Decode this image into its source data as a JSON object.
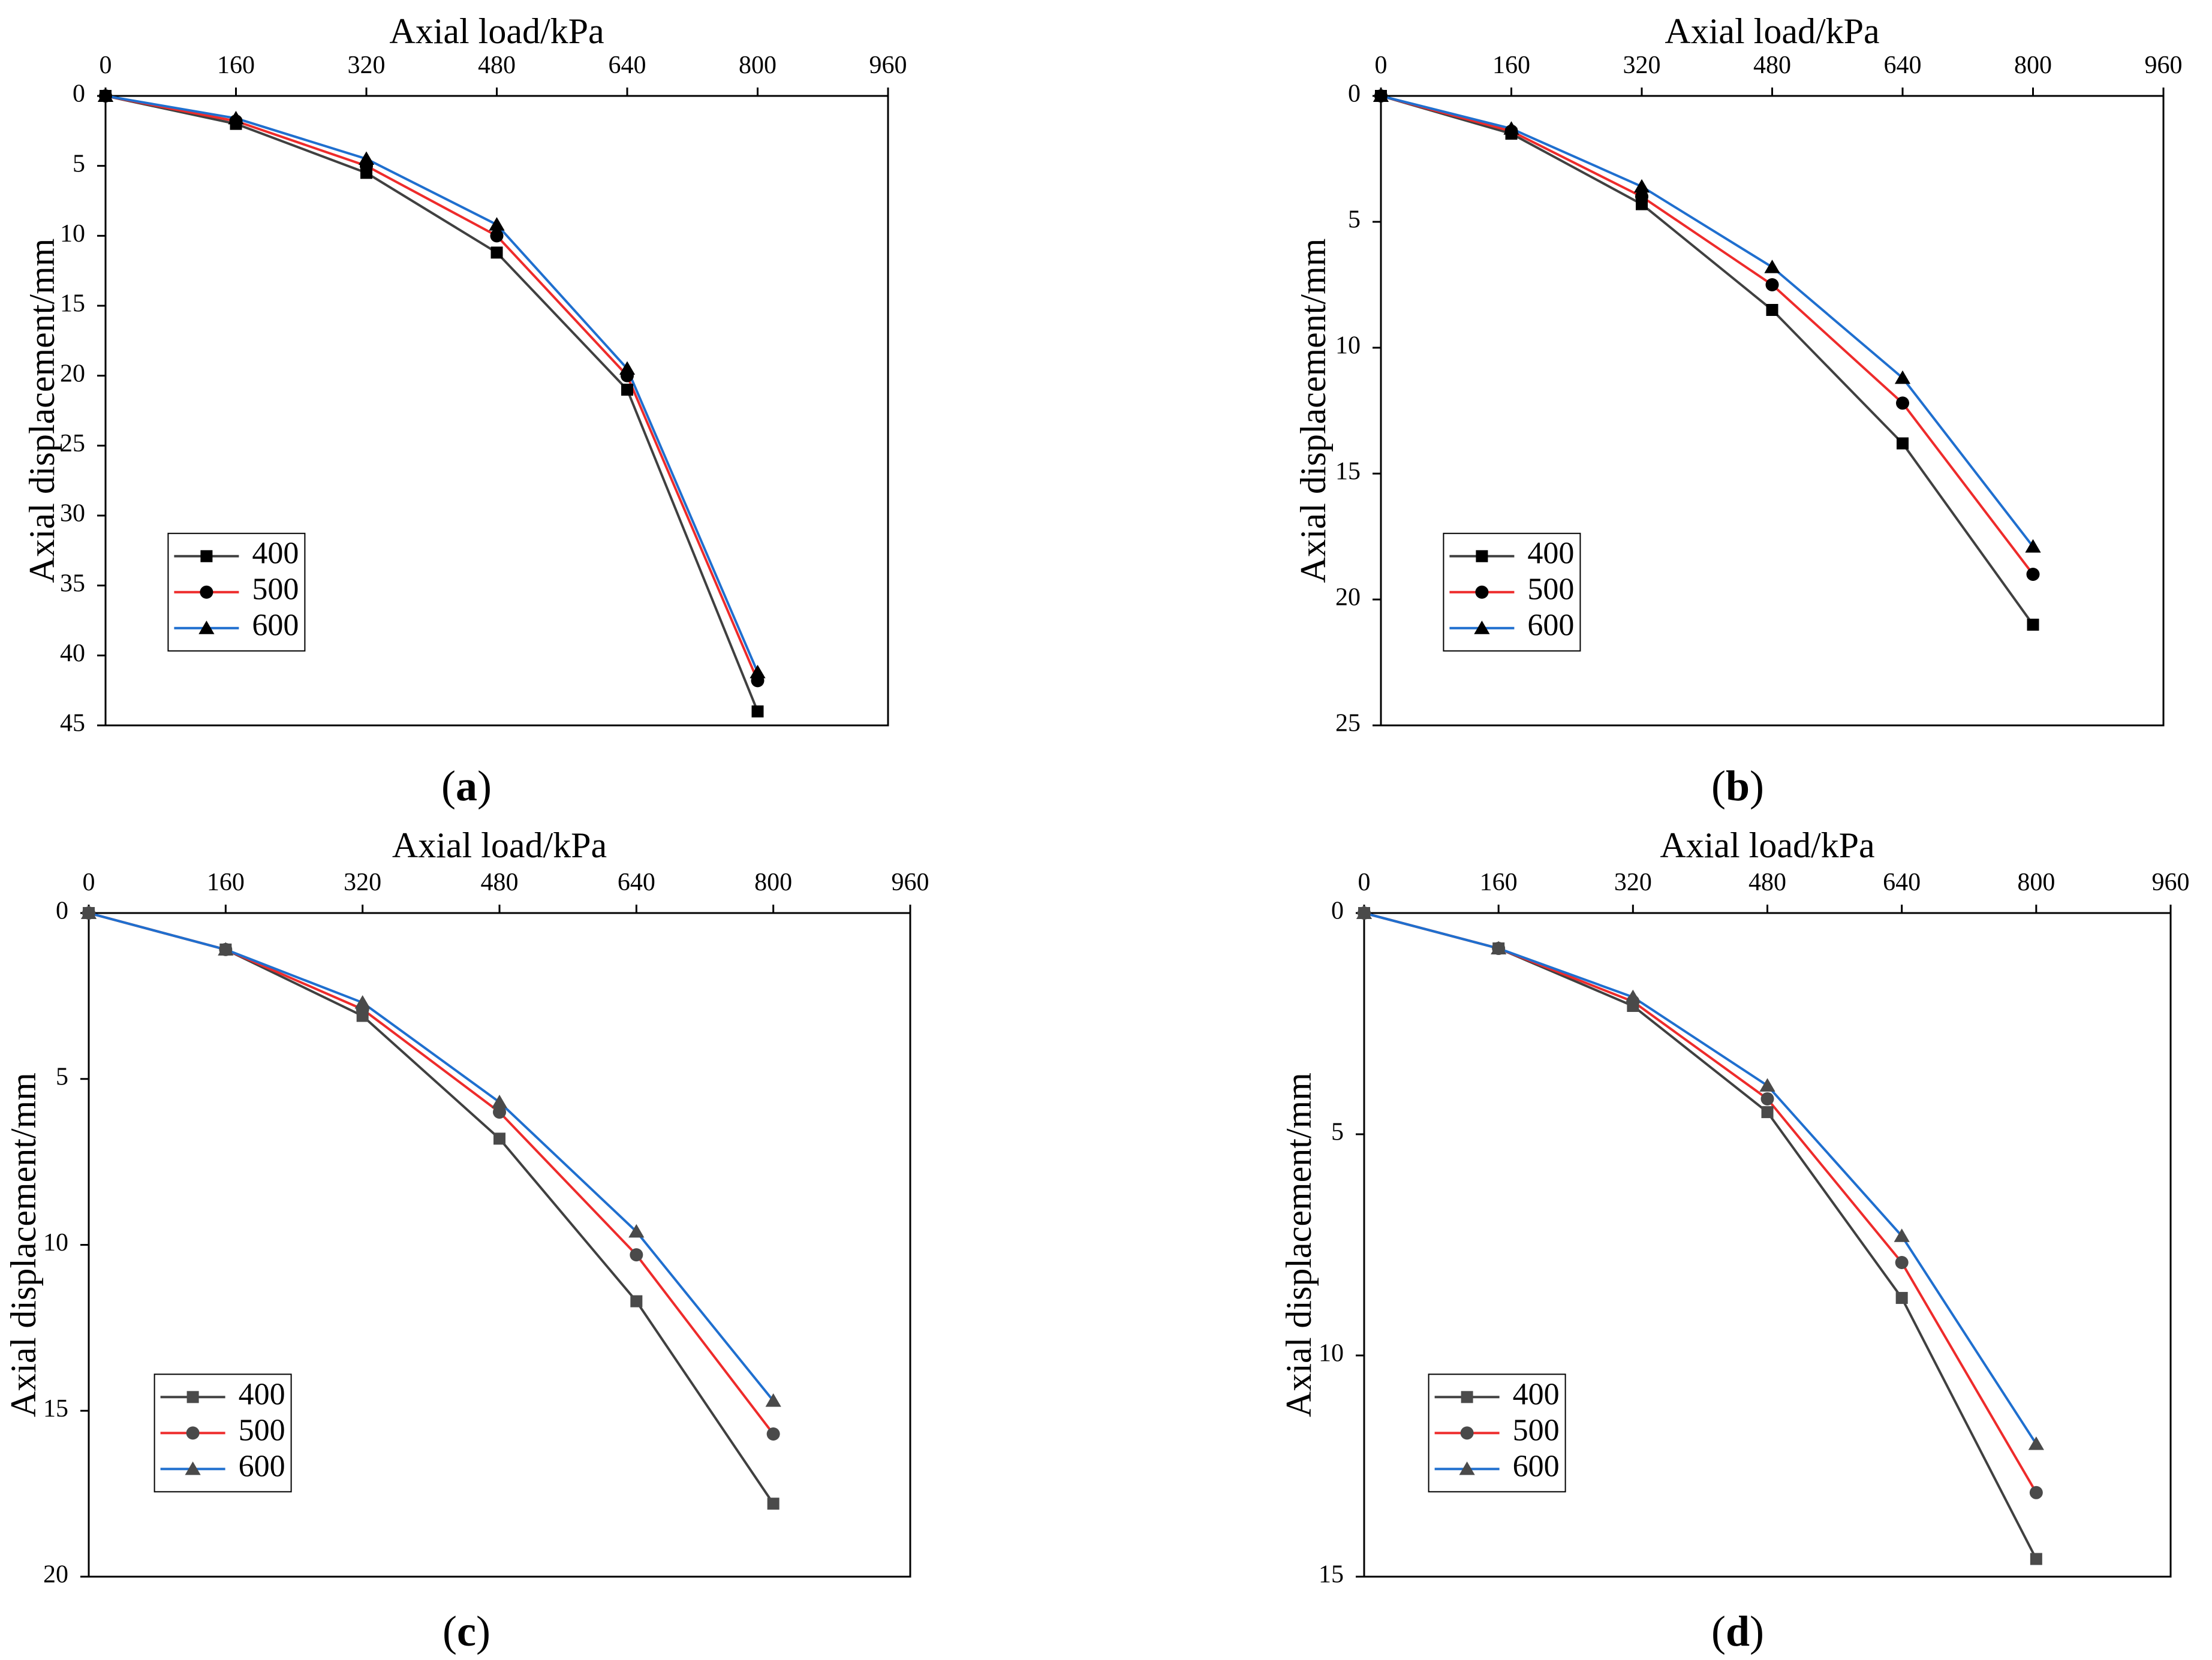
{
  "chart_data": [
    {
      "type": "line",
      "panel_label": "a",
      "xlabel": "Axial load/kPa",
      "ylabel": "Axial displacement/mm",
      "xlim": [
        0,
        960
      ],
      "ylim": [
        0,
        45
      ],
      "x_ticks": [
        0,
        160,
        320,
        480,
        640,
        800,
        960
      ],
      "y_ticks": [
        0,
        5,
        10,
        15,
        20,
        25,
        30,
        35,
        40,
        45
      ],
      "y_inverted": true,
      "x_axis_position": "top",
      "legend_position": "bottom-left",
      "marker_style": "black",
      "series": [
        {
          "name": "400",
          "marker": "square",
          "color": "#404040",
          "x": [
            0,
            160,
            320,
            480,
            640,
            800
          ],
          "y": [
            0,
            2,
            5.5,
            11.2,
            21,
            44
          ]
        },
        {
          "name": "500",
          "marker": "circle",
          "color": "#ee2b2b",
          "x": [
            0,
            160,
            320,
            480,
            640,
            800
          ],
          "y": [
            0,
            1.8,
            5,
            10,
            20,
            41.8
          ]
        },
        {
          "name": "600",
          "marker": "triangle",
          "color": "#1f6fcf",
          "x": [
            0,
            160,
            320,
            480,
            640,
            800
          ],
          "y": [
            0,
            1.6,
            4.5,
            9.2,
            19.5,
            41.2
          ]
        }
      ]
    },
    {
      "type": "line",
      "panel_label": "b",
      "xlabel": "Axial load/kPa",
      "ylabel": "Axial displacement/mm",
      "xlim": [
        0,
        960
      ],
      "ylim": [
        0,
        25
      ],
      "x_ticks": [
        0,
        160,
        320,
        480,
        640,
        800,
        960
      ],
      "y_ticks": [
        0,
        5,
        10,
        15,
        20,
        25
      ],
      "y_inverted": true,
      "x_axis_position": "top",
      "legend_position": "bottom-left",
      "marker_style": "black",
      "series": [
        {
          "name": "400",
          "marker": "square",
          "color": "#404040",
          "x": [
            0,
            160,
            320,
            480,
            640,
            800
          ],
          "y": [
            0,
            1.5,
            4.3,
            8.5,
            13.8,
            21
          ]
        },
        {
          "name": "500",
          "marker": "circle",
          "color": "#ee2b2b",
          "x": [
            0,
            160,
            320,
            480,
            640,
            800
          ],
          "y": [
            0,
            1.4,
            4,
            7.5,
            12.2,
            19
          ]
        },
        {
          "name": "600",
          "marker": "triangle",
          "color": "#1f6fcf",
          "x": [
            0,
            160,
            320,
            480,
            640,
            800
          ],
          "y": [
            0,
            1.3,
            3.6,
            6.8,
            11.2,
            17.9
          ]
        }
      ]
    },
    {
      "type": "line",
      "panel_label": "c",
      "xlabel": "Axial load/kPa",
      "ylabel": "Axial displacement/mm",
      "xlim": [
        0,
        960
      ],
      "ylim": [
        0,
        20
      ],
      "x_ticks": [
        0,
        160,
        320,
        480,
        640,
        800,
        960
      ],
      "y_ticks": [
        0,
        5,
        10,
        15,
        20
      ],
      "y_inverted": true,
      "x_axis_position": "top",
      "legend_position": "bottom-left",
      "marker_style": "gray",
      "series": [
        {
          "name": "400",
          "marker": "square",
          "color": "#404040",
          "x": [
            0,
            160,
            320,
            480,
            640,
            800
          ],
          "y": [
            0,
            1.1,
            3.1,
            6.8,
            11.7,
            17.8
          ]
        },
        {
          "name": "500",
          "marker": "circle",
          "color": "#ee2b2b",
          "x": [
            0,
            160,
            320,
            480,
            640,
            800
          ],
          "y": [
            0,
            1.1,
            2.9,
            6,
            10.3,
            15.7
          ]
        },
        {
          "name": "600",
          "marker": "triangle",
          "color": "#1f6fcf",
          "x": [
            0,
            160,
            320,
            480,
            640,
            800
          ],
          "y": [
            0,
            1.1,
            2.7,
            5.7,
            9.6,
            14.7
          ]
        }
      ]
    },
    {
      "type": "line",
      "panel_label": "d",
      "xlabel": "Axial load/kPa",
      "ylabel": "Axial displacement/mm",
      "xlim": [
        0,
        960
      ],
      "ylim": [
        0,
        15
      ],
      "x_ticks": [
        0,
        160,
        320,
        480,
        640,
        800,
        960
      ],
      "y_ticks": [
        0,
        5,
        10,
        15
      ],
      "y_inverted": true,
      "x_axis_position": "top",
      "legend_position": "bottom-left",
      "marker_style": "gray",
      "series": [
        {
          "name": "400",
          "marker": "square",
          "color": "#404040",
          "x": [
            0,
            160,
            320,
            480,
            640,
            800
          ],
          "y": [
            0,
            0.8,
            2.1,
            4.5,
            8.7,
            14.6
          ]
        },
        {
          "name": "500",
          "marker": "circle",
          "color": "#ee2b2b",
          "x": [
            0,
            160,
            320,
            480,
            640,
            800
          ],
          "y": [
            0,
            0.8,
            2,
            4.2,
            7.9,
            13.1
          ]
        },
        {
          "name": "600",
          "marker": "triangle",
          "color": "#1f6fcf",
          "x": [
            0,
            160,
            320,
            480,
            640,
            800
          ],
          "y": [
            0,
            0.8,
            1.9,
            3.9,
            7.3,
            12
          ]
        }
      ]
    }
  ]
}
